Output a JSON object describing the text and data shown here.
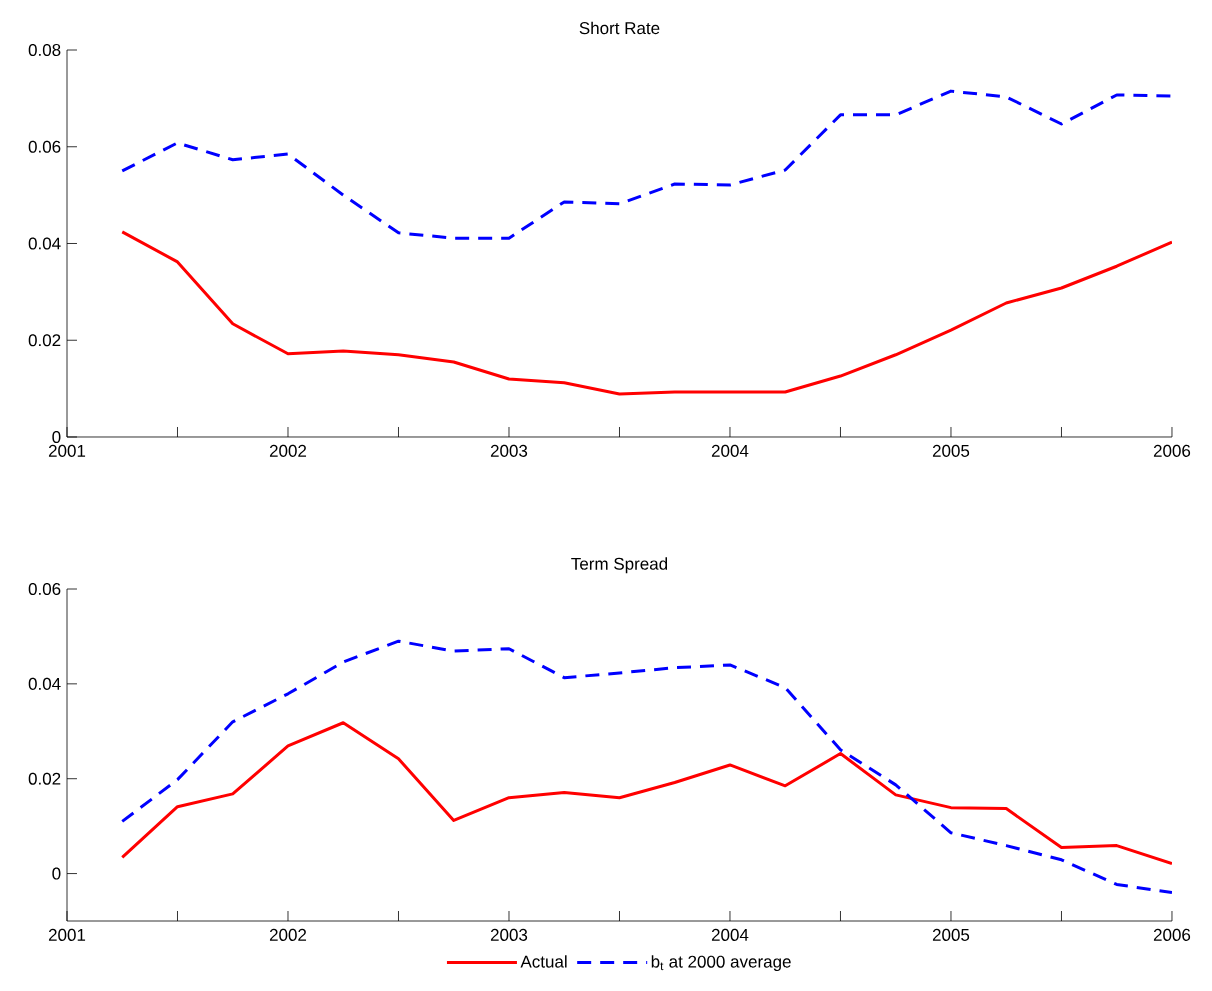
{
  "chart_data": [
    {
      "type": "line",
      "title": "Short Rate",
      "xlim": [
        2001,
        2006
      ],
      "ylim": [
        0,
        0.08
      ],
      "xticks": [
        2001,
        {
          "value": 2001.5,
          "label": null
        },
        2002,
        {
          "value": 2002.5,
          "label": null
        },
        2003,
        {
          "value": 2003.5,
          "label": null
        },
        2004,
        {
          "value": 2004.5,
          "label": null
        },
        2005,
        {
          "value": 2005.5,
          "label": null
        },
        2006
      ],
      "yticks": [
        0,
        0.02,
        0.04,
        0.06,
        0.08
      ],
      "x": [
        2001.25,
        2001.5,
        2001.75,
        2002,
        2002.25,
        2002.5,
        2002.75,
        2003,
        2003.25,
        2003.5,
        2003.75,
        2004,
        2004.25,
        2004.5,
        2004.75,
        2005,
        2005.25,
        2005.5,
        2005.75,
        2006
      ],
      "series": [
        {
          "color": "#ff0000",
          "line_style": "solid",
          "values": [
            0.0424,
            0.0362,
            0.0234,
            0.0172,
            0.0178,
            0.017,
            0.0155,
            0.012,
            0.0112,
            0.0089,
            0.0093,
            0.0093,
            0.0093,
            0.0126,
            0.017,
            0.0221,
            0.0277,
            0.0308,
            0.0353,
            0.0403
          ]
        },
        {
          "color": "#0000ff",
          "line_style": "dashed",
          "values": [
            0.055,
            0.0608,
            0.0573,
            0.0585,
            0.05,
            0.0422,
            0.0411,
            0.0411,
            0.0486,
            0.0482,
            0.0523,
            0.0521,
            0.0552,
            0.0666,
            0.0666,
            0.0715,
            0.0703,
            0.0647,
            0.0707,
            0.0705
          ]
        }
      ]
    },
    {
      "type": "line",
      "title": "Term Spread",
      "xlim": [
        2001,
        2006
      ],
      "ylim": [
        -0.01,
        0.06
      ],
      "legend": "bottom",
      "xticks": [
        2001,
        {
          "value": 2001.5,
          "label": null
        },
        2002,
        {
          "value": 2002.5,
          "label": null
        },
        2003,
        {
          "value": 2003.5,
          "label": null
        },
        2004,
        {
          "value": 2004.5,
          "label": null
        },
        2005,
        {
          "value": 2005.5,
          "label": null
        },
        2006
      ],
      "yticks": [
        0,
        0.02,
        0.04,
        0.06
      ],
      "x": [
        2001.25,
        2001.5,
        2001.75,
        2002,
        2002.25,
        2002.5,
        2002.75,
        2003,
        2003.25,
        2003.5,
        2003.75,
        2004,
        2004.25,
        2004.5,
        2004.75,
        2005,
        2005.25,
        2005.5,
        2005.75,
        2006
      ],
      "series": [
        {
          "name": "Actual",
          "color": "#ff0000",
          "line_style": "solid",
          "values": [
            0.0034,
            0.0141,
            0.0168,
            0.0269,
            0.0318,
            0.0242,
            0.0112,
            0.016,
            0.0171,
            0.016,
            0.0192,
            0.0229,
            0.0185,
            0.0253,
            0.0166,
            0.0139,
            0.0137,
            0.0055,
            0.0059,
            0.0021
          ]
        },
        {
          "name": "b$_{t}$ at 2000 average",
          "color": "#0000ff",
          "line_style": "dashed",
          "values": [
            0.011,
            0.0198,
            0.032,
            0.0379,
            0.0446,
            0.049,
            0.0469,
            0.0474,
            0.0413,
            0.0423,
            0.0434,
            0.044,
            0.0392,
            0.0261,
            0.0187,
            0.0086,
            0.0059,
            0.0029,
            -0.0023,
            -0.004
          ]
        }
      ]
    }
  ]
}
